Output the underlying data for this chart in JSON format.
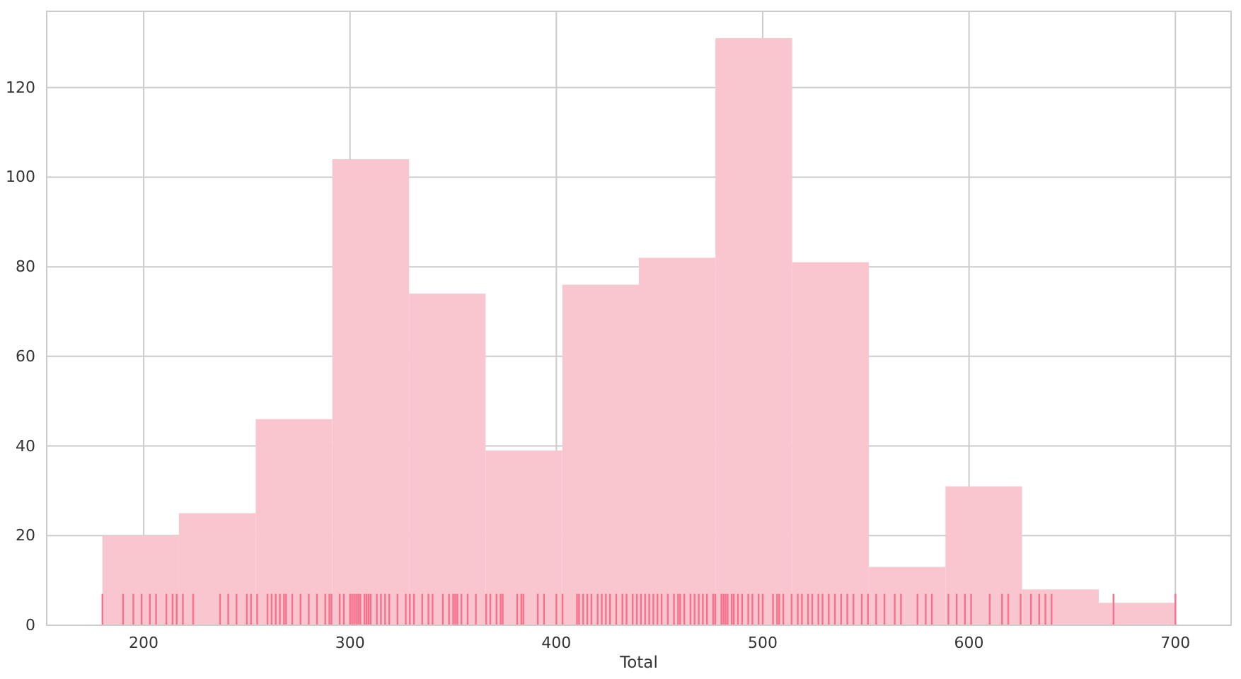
{
  "chart_data": {
    "type": "histogram",
    "xlabel": "Total",
    "bins": [
      180,
      217.1,
      254.3,
      291.4,
      328.6,
      365.7,
      402.9,
      440,
      477.1,
      514.3,
      551.4,
      588.6,
      625.7,
      662.9,
      700
    ],
    "values": [
      20,
      25,
      46,
      104,
      74,
      39,
      76,
      82,
      131,
      81,
      13,
      31,
      8,
      5
    ],
    "color": "#f9c6d0",
    "series": [
      {
        "type": "bar",
        "color": "#f7718c",
        "x": [
          180,
          190,
          195,
          199,
          203,
          206,
          211,
          214,
          216,
          219,
          224,
          237,
          241,
          245,
          250,
          252,
          255,
          260,
          262,
          264,
          266,
          268,
          269,
          272,
          276,
          280,
          284,
          288,
          290,
          291,
          295,
          297,
          300,
          301,
          302,
          303,
          304,
          305,
          307,
          308,
          309,
          310,
          313,
          315,
          317,
          319,
          323,
          327,
          329,
          331,
          335,
          338,
          340,
          345,
          348,
          350,
          351,
          352,
          354,
          357,
          361,
          366,
          368,
          371,
          373,
          374,
          381,
          383,
          384,
          391,
          394,
          400,
          403,
          410,
          411,
          413,
          415,
          417,
          420,
          422,
          424,
          426,
          429,
          432,
          434,
          437,
          439,
          441,
          443,
          445,
          447,
          449,
          451,
          454,
          457,
          459,
          460,
          462,
          465,
          467,
          469,
          471,
          473,
          476,
          477,
          480,
          481,
          482,
          483,
          485,
          486,
          488,
          490,
          493,
          495,
          498,
          500,
          505,
          507,
          508,
          510,
          514,
          517,
          519,
          522,
          524,
          527,
          529,
          532,
          535,
          538,
          541,
          544,
          548,
          551,
          555,
          559,
          564,
          567,
          575,
          579,
          582,
          590,
          594,
          598,
          601,
          610,
          616,
          619,
          625,
          630,
          634,
          637,
          640,
          670,
          700
        ],
        "values": [
          7,
          7,
          7,
          7,
          7,
          7,
          7,
          7,
          7,
          7,
          7,
          7,
          7,
          7,
          7,
          7,
          7,
          7,
          7,
          7,
          7,
          7,
          7,
          7,
          7,
          7,
          7,
          7,
          7,
          7,
          7,
          7,
          7,
          7,
          7,
          7,
          7,
          7,
          7,
          7,
          7,
          7,
          7,
          7,
          7,
          7,
          7,
          7,
          7,
          7,
          7,
          7,
          7,
          7,
          7,
          7,
          7,
          7,
          7,
          7,
          7,
          7,
          7,
          7,
          7,
          7,
          7,
          7,
          7,
          7,
          7,
          7,
          7,
          7,
          7,
          7,
          7,
          7,
          7,
          7,
          7,
          7,
          7,
          7,
          7,
          7,
          7,
          7,
          7,
          7,
          7,
          7,
          7,
          7,
          7,
          7,
          7,
          7,
          7,
          7,
          7,
          7,
          7,
          7,
          7,
          7,
          7,
          7,
          7,
          7,
          7,
          7,
          7,
          7,
          7,
          7,
          7,
          7,
          7,
          7,
          7,
          7,
          7,
          7,
          7,
          7,
          7,
          7,
          7,
          7,
          7,
          7,
          7,
          7,
          7,
          7,
          7,
          7,
          7,
          7,
          7,
          7,
          7,
          7,
          7,
          7,
          7,
          7,
          7,
          7,
          7,
          7,
          7,
          7,
          7,
          7
        ]
      }
    ],
    "xlim": [
      153,
      727
    ],
    "ylim": [
      0,
      137
    ],
    "xticks": [
      200,
      300,
      400,
      500,
      600,
      700
    ],
    "yticks": [
      0,
      20,
      40,
      60,
      80,
      100,
      120
    ],
    "grid": true
  }
}
